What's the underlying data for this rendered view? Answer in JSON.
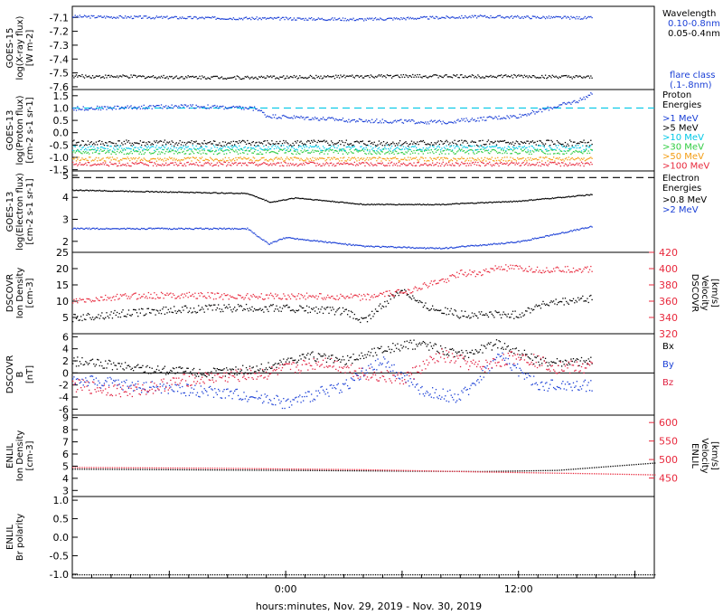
{
  "footer": {
    "xlabel": "hours:minutes, Nov. 29, 2019 - Nov. 30, 2019"
  },
  "colors": {
    "black": "#000000",
    "blue": "#1a3fd6",
    "cyan": "#00c8e6",
    "green": "#2ecc40",
    "orange": "#f39c12",
    "red": "#e8283c",
    "mag_red": "#e02040"
  },
  "x_axis": {
    "ticks": [
      "0:00",
      "12:00"
    ]
  },
  "chart_data": [
    {
      "id": "xray",
      "type": "scatter",
      "ylabel": [
        "GOES-15",
        "log(X-ray flux)",
        "[W m-2]"
      ],
      "ylim": [
        -7.62,
        -7.02
      ],
      "yticks": [
        "-7.1",
        "-7.2",
        "-7.3",
        "-7.4",
        "-7.5",
        "-7.6"
      ],
      "legend_title": [
        "Wavelength"
      ],
      "legend": [
        "0.10-0.8nm",
        "0.05-0.4nm"
      ],
      "legend_note": [
        "flare class",
        "(.1-.8nm)"
      ],
      "series": [
        {
          "name": "0.10-0.8nm",
          "color_key": "blue",
          "points": [
            [
              -11,
              -7.09
            ],
            [
              -4,
              -7.1
            ],
            [
              4,
              -7.11
            ],
            [
              10,
              -7.09
            ],
            [
              15.8,
              -7.1
            ]
          ],
          "noise": 0.01
        },
        {
          "name": "0.05-0.4nm",
          "color_key": "black",
          "points": [
            [
              -11,
              -7.52
            ],
            [
              -2,
              -7.53
            ],
            [
              6,
              -7.52
            ],
            [
              12,
              -7.52
            ],
            [
              15.8,
              -7.53
            ]
          ],
          "noise": 0.012
        }
      ]
    },
    {
      "id": "proton",
      "type": "scatter",
      "ylabel": [
        "GOES-13",
        "log(Proton flux)",
        "[cm-2 s-1 sr-1]"
      ],
      "ylim": [
        -1.55,
        1.75
      ],
      "yticks": [
        "1.5",
        "1.0",
        "0.5",
        "0.0",
        "-0.5",
        "-1.0",
        "-1.5"
      ],
      "reference_line": 1.0,
      "legend_title": [
        "Proton",
        "Energies"
      ],
      "legend": [
        ">1 MeV",
        ">5 MeV",
        ">10 MeV",
        ">30 MeV",
        ">50 MeV",
        ">100 MeV"
      ],
      "series": [
        {
          "name": ">1 MeV",
          "color_key": "blue",
          "points": [
            [
              -11,
              1.0
            ],
            [
              -5,
              1.1
            ],
            [
              -1.5,
              1.0
            ],
            [
              -1,
              0.7
            ],
            [
              4,
              0.5
            ],
            [
              8,
              0.45
            ],
            [
              12,
              0.7
            ],
            [
              15,
              1.3
            ],
            [
              15.8,
              1.6
            ]
          ],
          "noise": 0.08
        },
        {
          "name": ">5 MeV",
          "color_key": "black",
          "points": [
            [
              -11,
              -0.4
            ],
            [
              15.8,
              -0.4
            ]
          ],
          "noise": 0.12
        },
        {
          "name": ">10 MeV",
          "color_key": "cyan",
          "points": [
            [
              -11,
              -0.6
            ],
            [
              15.8,
              -0.6
            ]
          ],
          "noise": 0.12
        },
        {
          "name": ">30 MeV",
          "color_key": "green",
          "points": [
            [
              -11,
              -0.75
            ],
            [
              15.8,
              -0.75
            ]
          ],
          "noise": 0.1
        },
        {
          "name": ">50 MeV",
          "color_key": "orange",
          "points": [
            [
              -11,
              -1.05
            ],
            [
              15.8,
              -1.05
            ]
          ],
          "noise": 0.08
        },
        {
          "name": ">100 MeV",
          "color_key": "red",
          "points": [
            [
              -11,
              -1.25
            ],
            [
              15.8,
              -1.25
            ]
          ],
          "noise": 0.08
        }
      ]
    },
    {
      "id": "electron",
      "type": "scatter",
      "ylabel": [
        "GOES-13",
        "log(Electron flux)",
        "[cm-2 s-1 sr-1]"
      ],
      "ylim": [
        1.5,
        5.2
      ],
      "yticks": [
        "5",
        "4",
        "3",
        "2"
      ],
      "reference_line": 4.9,
      "legend_title": [
        "Electron",
        "Energies"
      ],
      "legend": [
        ">0.8 MeV",
        ">2 MeV"
      ],
      "series": [
        {
          "name": ">0.8 MeV",
          "color_key": "black",
          "points": [
            [
              -11,
              4.35
            ],
            [
              -2,
              4.2
            ],
            [
              -0.8,
              3.8
            ],
            [
              0.5,
              4.0
            ],
            [
              4,
              3.7
            ],
            [
              8,
              3.7
            ],
            [
              12,
              3.85
            ],
            [
              15.8,
              4.15
            ]
          ],
          "noise": 0.02
        },
        {
          "name": ">2 MeV",
          "color_key": "blue",
          "points": [
            [
              -11,
              2.6
            ],
            [
              -2,
              2.6
            ],
            [
              -0.9,
              1.9
            ],
            [
              0,
              2.2
            ],
            [
              4,
              1.8
            ],
            [
              8,
              1.7
            ],
            [
              12,
              2.0
            ],
            [
              15.8,
              2.7
            ]
          ],
          "noise": 0.03
        }
      ]
    },
    {
      "id": "dscovr_density",
      "type": "scatter",
      "ylabel": [
        "DSCOVR",
        "Ion Density",
        "[cm-3]"
      ],
      "ylim": [
        0,
        25
      ],
      "yticks": [
        "25",
        "20",
        "15",
        "10",
        "5"
      ],
      "right_ylabel": [
        "DSCOVR",
        "Velocity",
        "[km/s]"
      ],
      "right_ylim": [
        320,
        420
      ],
      "right_yticks": [
        "420",
        "400",
        "380",
        "360",
        "340",
        "320"
      ],
      "series": [
        {
          "name": "Ion Density",
          "color_key": "black",
          "axis": "left",
          "points": [
            [
              -11,
              5
            ],
            [
              -7,
              7
            ],
            [
              -4,
              8
            ],
            [
              0,
              8
            ],
            [
              3,
              7
            ],
            [
              4,
              4
            ],
            [
              6,
              14
            ],
            [
              7,
              9
            ],
            [
              9,
              6
            ],
            [
              12,
              6
            ],
            [
              13,
              9
            ],
            [
              15.8,
              11
            ]
          ],
          "noise": 1.2
        },
        {
          "name": "Velocity",
          "color_key": "red",
          "axis": "right",
          "points": [
            [
              -11,
              360
            ],
            [
              -8,
              367
            ],
            [
              -5,
              368
            ],
            [
              -2,
              366
            ],
            [
              1,
              367
            ],
            [
              4,
              365
            ],
            [
              6,
              372
            ],
            [
              8,
              385
            ],
            [
              9,
              395
            ],
            [
              10,
              395
            ],
            [
              11,
              402
            ],
            [
              13,
              399
            ],
            [
              15.8,
              400
            ]
          ],
          "noise": 4
        }
      ]
    },
    {
      "id": "dscovr_b",
      "type": "scatter",
      "ylabel": [
        "DSCOVR",
        "B",
        "[nT]"
      ],
      "ylim": [
        -7,
        6.5
      ],
      "yticks": [
        "6",
        "4",
        "2",
        "0",
        "-2",
        "-4",
        "-6"
      ],
      "legend": [
        "Bx",
        "By",
        "Bz"
      ],
      "series": [
        {
          "name": "Bx",
          "color_key": "black",
          "points": [
            [
              -11,
              2
            ],
            [
              -8,
              1
            ],
            [
              -4,
              0
            ],
            [
              -1,
              1
            ],
            [
              1,
              3
            ],
            [
              3,
              2
            ],
            [
              5,
              4
            ],
            [
              7,
              5
            ],
            [
              9,
              3
            ],
            [
              11,
              5
            ],
            [
              13,
              2
            ],
            [
              15.8,
              2
            ]
          ],
          "noise": 0.8
        },
        {
          "name": "By",
          "color_key": "blue",
          "points": [
            [
              -11,
              -1
            ],
            [
              -8,
              -2
            ],
            [
              -4,
              -3
            ],
            [
              -1,
              -4
            ],
            [
              0,
              -5
            ],
            [
              3,
              -2
            ],
            [
              5,
              2
            ],
            [
              7,
              -3
            ],
            [
              9,
              -4
            ],
            [
              11,
              3
            ],
            [
              13,
              -2
            ],
            [
              15.8,
              -2
            ]
          ],
          "noise": 1.0
        },
        {
          "name": "Bz",
          "color_key": "mag_red",
          "points": [
            [
              -11,
              -2
            ],
            [
              -8,
              -3
            ],
            [
              -5,
              -1
            ],
            [
              -1,
              0
            ],
            [
              2,
              2
            ],
            [
              4,
              0
            ],
            [
              6,
              -1
            ],
            [
              8,
              3
            ],
            [
              10,
              1
            ],
            [
              12,
              3
            ],
            [
              14,
              1
            ],
            [
              15.8,
              1
            ]
          ],
          "noise": 1.1
        }
      ]
    },
    {
      "id": "enlil_density",
      "type": "line",
      "ylabel": [
        "ENLIL",
        "Ion Density",
        "[cm-3]"
      ],
      "ylim": [
        2.5,
        9.2
      ],
      "yticks": [
        "9",
        "8",
        "7",
        "6",
        "5",
        "4",
        "3"
      ],
      "right_ylabel": [
        "ENLIL",
        "Velocity",
        "[km/s]"
      ],
      "right_ylim": [
        400,
        620
      ],
      "right_yticks": [
        "600",
        "550",
        "500",
        "450"
      ],
      "series": [
        {
          "name": "Ion Density",
          "color_key": "black",
          "axis": "left",
          "points": [
            [
              -11,
              4.8
            ],
            [
              0,
              4.7
            ],
            [
              10,
              4.6
            ],
            [
              14,
              4.7
            ],
            [
              19,
              5.3
            ]
          ],
          "noise": 0
        },
        {
          "name": "Velocity",
          "color_key": "red",
          "axis": "right",
          "points": [
            [
              -11,
              480
            ],
            [
              -4,
              478
            ],
            [
              4,
              474
            ],
            [
              10,
              468
            ],
            [
              16,
              463
            ],
            [
              19,
              460
            ]
          ],
          "noise": 0
        }
      ]
    },
    {
      "id": "enlil_polarity",
      "type": "line",
      "ylabel": [
        "ENLIL",
        "Br polarity"
      ],
      "ylim": [
        -1.1,
        1.1
      ],
      "yticks": [
        "1.0",
        "0.5",
        "0.0",
        "-0.5",
        "-1.0"
      ],
      "series": [
        {
          "name": "Br polarity",
          "color_key": "black",
          "axis": "left",
          "points": [
            [
              -11,
              -1
            ],
            [
              19,
              -1
            ]
          ],
          "noise": 0
        }
      ]
    }
  ]
}
